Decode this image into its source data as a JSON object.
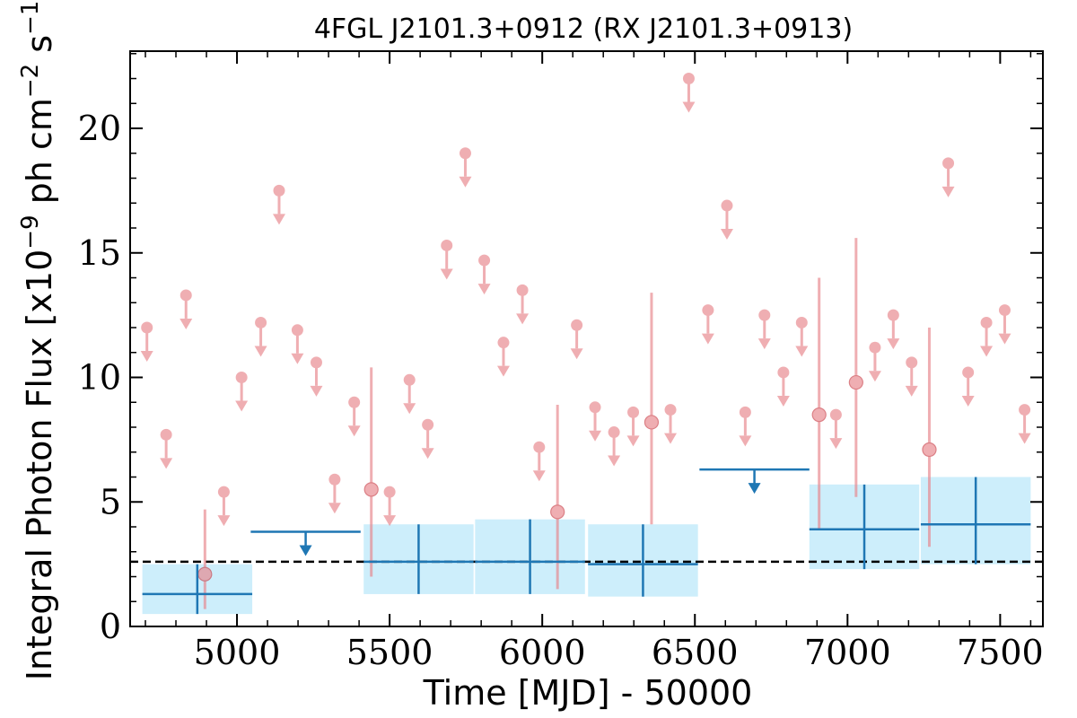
{
  "chart_data": {
    "type": "scatter",
    "title": "4FGL J2101.3+0912 (RX J2101.3+0913)",
    "xlabel": "Time [MJD] - 50000",
    "ylabel_main": "Integral Photon Flux [x10",
    "ylabel_exp1": "−9",
    "ylabel_mid": " ph cm",
    "ylabel_exp2": "−2",
    "ylabel_mid2": " s",
    "ylabel_exp3": "−1",
    "ylabel_end": "]",
    "xlim": [
      4650,
      7640
    ],
    "ylim": [
      0,
      23.1
    ],
    "xticks": [
      5000,
      5500,
      6000,
      6500,
      7000,
      7500
    ],
    "xtick_labels": [
      "5000",
      "5500",
      "6000",
      "6500",
      "7000",
      "7500"
    ],
    "yticks": [
      0,
      5,
      10,
      15,
      20
    ],
    "ytick_labels": [
      "0",
      "5",
      "10",
      "15",
      "20"
    ],
    "x_minor_step": 100,
    "y_minor_step": 1,
    "colors": {
      "short_bins": "#e8848a",
      "long_bins": "#1f77b4",
      "band": "#cdeefb",
      "reference": "#000000"
    },
    "reference_line": 2.6,
    "short_bin_upper_limits": [
      [
        4705,
        12.0
      ],
      [
        4768,
        7.7
      ],
      [
        4833,
        13.3
      ],
      [
        4957,
        5.4
      ],
      [
        5015,
        10.0
      ],
      [
        5078,
        12.2
      ],
      [
        5138,
        17.5
      ],
      [
        5198,
        11.9
      ],
      [
        5260,
        10.6
      ],
      [
        5320,
        5.9
      ],
      [
        5384,
        9.0
      ],
      [
        5500,
        5.4
      ],
      [
        5565,
        9.9
      ],
      [
        5625,
        8.1
      ],
      [
        5687,
        15.3
      ],
      [
        5748,
        19.0
      ],
      [
        5810,
        14.7
      ],
      [
        5873,
        11.4
      ],
      [
        5935,
        13.5
      ],
      [
        5990,
        7.2
      ],
      [
        6113,
        12.1
      ],
      [
        6173,
        8.8
      ],
      [
        6235,
        7.8
      ],
      [
        6298,
        8.6
      ],
      [
        6420,
        8.7
      ],
      [
        6480,
        22.0
      ],
      [
        6543,
        12.7
      ],
      [
        6605,
        16.9
      ],
      [
        6665,
        8.6
      ],
      [
        6728,
        12.5
      ],
      [
        6790,
        10.2
      ],
      [
        6850,
        12.2
      ],
      [
        6962,
        8.5
      ],
      [
        7090,
        11.2
      ],
      [
        7150,
        12.5
      ],
      [
        7210,
        10.6
      ],
      [
        7330,
        18.6
      ],
      [
        7395,
        10.2
      ],
      [
        7455,
        12.2
      ],
      [
        7515,
        12.7
      ],
      [
        7580,
        8.7
      ]
    ],
    "short_bin_detections": [
      [
        4895,
        2.1,
        0.7,
        4.7
      ],
      [
        5440,
        5.5,
        2.0,
        10.4
      ],
      [
        6050,
        4.6,
        1.5,
        8.9
      ],
      [
        6358,
        8.2,
        4.1,
        13.4
      ],
      [
        6907,
        8.5,
        3.9,
        14.0
      ],
      [
        7028,
        9.8,
        5.2,
        15.6
      ],
      [
        7268,
        7.1,
        3.2,
        12.0
      ]
    ],
    "long_bin_detections": [
      {
        "x": 4870,
        "xerr": 180,
        "y": 1.3,
        "ylo": 0.5,
        "yhi": 2.5
      },
      {
        "x": 5595,
        "xerr": 180,
        "y": 2.6,
        "ylo": 1.3,
        "yhi": 4.1
      },
      {
        "x": 5960,
        "xerr": 180,
        "y": 2.6,
        "ylo": 1.3,
        "yhi": 4.3
      },
      {
        "x": 6330,
        "xerr": 180,
        "y": 2.5,
        "ylo": 1.2,
        "yhi": 4.1
      },
      {
        "x": 7055,
        "xerr": 180,
        "y": 3.9,
        "ylo": 2.3,
        "yhi": 5.7
      },
      {
        "x": 7420,
        "xerr": 180,
        "y": 4.1,
        "ylo": 2.5,
        "yhi": 6.0
      }
    ],
    "long_bin_upper_limits": [
      {
        "x": 5225,
        "xerr": 180,
        "y": 3.8
      },
      {
        "x": 6695,
        "xerr": 180,
        "y": 6.3
      }
    ]
  }
}
